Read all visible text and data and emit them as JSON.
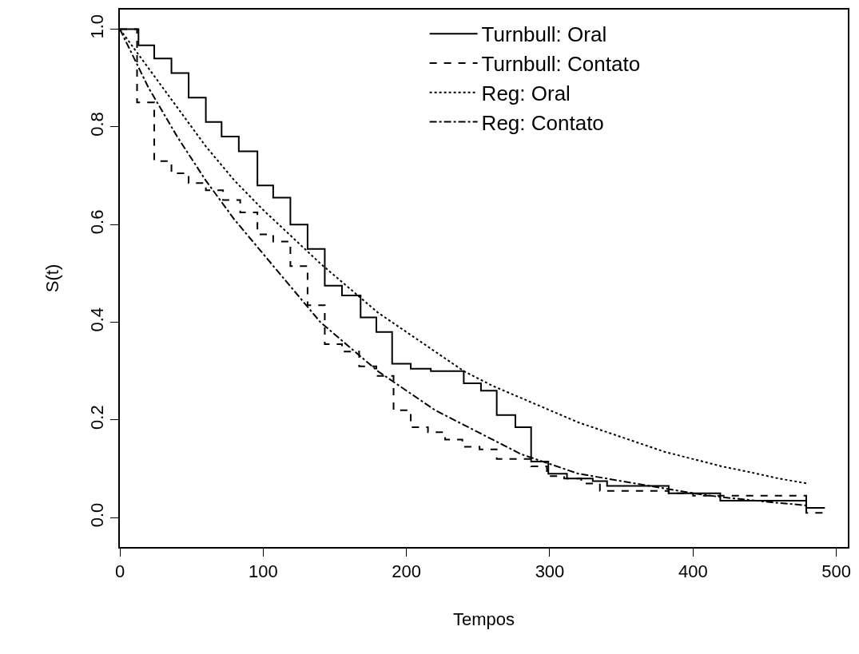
{
  "chart_data": {
    "type": "line",
    "xlabel": "Tempos",
    "ylabel": "S(t)",
    "xlim": [
      0,
      508
    ],
    "ylim": [
      -0.06,
      1.04
    ],
    "xticks": [
      0,
      100,
      200,
      300,
      400,
      500
    ],
    "yticks": [
      {
        "value": 0,
        "label": "0.0"
      },
      {
        "value": 0.2,
        "label": "0.2"
      },
      {
        "value": 0.4,
        "label": "0.4"
      },
      {
        "value": 0.6,
        "label": "0.6"
      },
      {
        "value": 0.8,
        "label": "0.8"
      },
      {
        "value": 1,
        "label": "1.0"
      }
    ],
    "grid": false,
    "legend": "top right",
    "marker": "none",
    "series": [
      {
        "name": "Turnbull: Oral",
        "type": "step",
        "color": "#000000",
        "line_style": "solid",
        "x": [
          0,
          13,
          24,
          36,
          48,
          60,
          71,
          83,
          96,
          107,
          119,
          131,
          143,
          155,
          168,
          179,
          190,
          203,
          217,
          240,
          252,
          263,
          276,
          287,
          299,
          312,
          330,
          340,
          383,
          419,
          479,
          492
        ],
        "values": [
          1.0,
          0.967,
          0.94,
          0.91,
          0.86,
          0.81,
          0.78,
          0.75,
          0.68,
          0.655,
          0.6,
          0.55,
          0.475,
          0.455,
          0.41,
          0.38,
          0.315,
          0.305,
          0.3,
          0.275,
          0.26,
          0.21,
          0.185,
          0.115,
          0.09,
          0.08,
          0.075,
          0.065,
          0.05,
          0.035,
          0.02,
          0.02
        ]
      },
      {
        "name": "Turnbull: Contato",
        "type": "step",
        "color": "#000000",
        "line_style": "dashed",
        "x": [
          0,
          12,
          24,
          36,
          48,
          60,
          72,
          84,
          96,
          107,
          119,
          131,
          143,
          155,
          167,
          179,
          191,
          203,
          215,
          227,
          239,
          251,
          263,
          287,
          298,
          310,
          322,
          335,
          383,
          400,
          479,
          492
        ],
        "values": [
          1.0,
          0.85,
          0.73,
          0.705,
          0.685,
          0.67,
          0.65,
          0.625,
          0.58,
          0.565,
          0.515,
          0.435,
          0.355,
          0.34,
          0.31,
          0.29,
          0.22,
          0.185,
          0.175,
          0.16,
          0.145,
          0.14,
          0.12,
          0.105,
          0.085,
          0.08,
          0.07,
          0.055,
          0.05,
          0.045,
          0.01,
          0.01
        ]
      },
      {
        "name": "Reg: Oral",
        "color": "#000000",
        "line_style": "dotted",
        "x": [
          0,
          20,
          40,
          60,
          80,
          100,
          120,
          140,
          160,
          180,
          200,
          220,
          240,
          260,
          280,
          300,
          320,
          340,
          360,
          380,
          400,
          420,
          440,
          460,
          480
        ],
        "values": [
          1.0,
          0.92,
          0.84,
          0.76,
          0.69,
          0.63,
          0.575,
          0.52,
          0.47,
          0.42,
          0.38,
          0.34,
          0.3,
          0.27,
          0.245,
          0.22,
          0.195,
          0.175,
          0.155,
          0.135,
          0.12,
          0.105,
          0.093,
          0.08,
          0.07
        ]
      },
      {
        "name": "Reg: Contato",
        "color": "#000000",
        "line_style": "dashdot",
        "x": [
          0,
          20,
          40,
          60,
          80,
          100,
          120,
          140,
          160,
          180,
          200,
          220,
          240,
          260,
          280,
          300,
          320,
          340,
          360,
          380,
          400,
          420,
          440,
          460,
          480
        ],
        "values": [
          1.0,
          0.88,
          0.78,
          0.69,
          0.61,
          0.54,
          0.47,
          0.4,
          0.35,
          0.3,
          0.26,
          0.22,
          0.19,
          0.16,
          0.13,
          0.11,
          0.09,
          0.08,
          0.07,
          0.06,
          0.05,
          0.042,
          0.036,
          0.03,
          0.025
        ]
      }
    ]
  }
}
